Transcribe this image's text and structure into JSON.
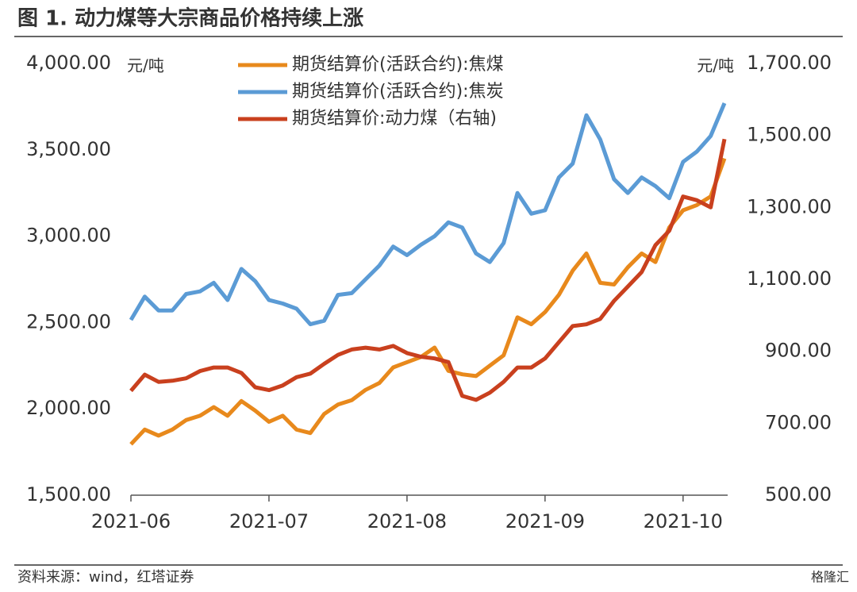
{
  "chart_data": {
    "type": "line",
    "title": "图 1. 动力煤等大宗商品价格持续上涨",
    "source": "资料来源：wind，红塔证券",
    "watermark": "格隆汇",
    "y_label": "元/吨",
    "y2_label": "元/吨",
    "categories": [
      "2021-06",
      null,
      null,
      null,
      null,
      null,
      null,
      null,
      null,
      null,
      "2021-07",
      null,
      null,
      null,
      null,
      null,
      null,
      null,
      null,
      null,
      "2021-08",
      null,
      null,
      null,
      null,
      null,
      null,
      null,
      null,
      null,
      "2021-09",
      null,
      null,
      null,
      null,
      null,
      null,
      null,
      null,
      null,
      "2021-10",
      null,
      null,
      null
    ],
    "series": [
      {
        "name": "期货结算价(活跃合约):焦煤",
        "color": "#e8891c",
        "values": [
          1795,
          1880,
          1845,
          1880,
          1935,
          1960,
          2010,
          1960,
          2045,
          1990,
          1925,
          1960,
          1880,
          1860,
          1970,
          2025,
          2050,
          2110,
          2150,
          2240,
          2270,
          2300,
          2355,
          2220,
          2200,
          2190,
          2250,
          2310,
          2530,
          2490,
          2560,
          2660,
          2800,
          2900,
          2730,
          2720,
          2820,
          2900,
          2850,
          3050,
          3150,
          3180,
          3230,
          3450
        ]
      },
      {
        "name": "期货结算价(活跃合约):焦炭",
        "color": "#5b9bd5",
        "values": [
          2515,
          2650,
          2570,
          2570,
          2665,
          2680,
          2730,
          2630,
          2810,
          2740,
          2630,
          2610,
          2580,
          2490,
          2510,
          2660,
          2670,
          2750,
          2830,
          2940,
          2890,
          2950,
          3000,
          3080,
          3050,
          2900,
          2850,
          2960,
          3250,
          3130,
          3150,
          3340,
          3420,
          3700,
          3560,
          3330,
          3250,
          3340,
          3290,
          3220,
          3430,
          3490,
          3580,
          3770
        ]
      },
      {
        "name": "期货结算价:动力煤（右轴)",
        "color": "#c9401e",
        "axis": "y2",
        "values": [
          790,
          835,
          815,
          818,
          825,
          845,
          855,
          855,
          840,
          800,
          792,
          805,
          828,
          838,
          865,
          890,
          905,
          910,
          905,
          915,
          895,
          885,
          880,
          870,
          776,
          765,
          785,
          815,
          855,
          855,
          880,
          925,
          970,
          975,
          990,
          1040,
          1080,
          1120,
          1195,
          1235,
          1330,
          1320,
          1300,
          1490
        ]
      }
    ],
    "ylim": [
      1500,
      4000
    ],
    "yticks": [
      {
        "value": 1500,
        "label": "1,500.00"
      },
      {
        "value": 2000,
        "label": "2,000.00"
      },
      {
        "value": 2500,
        "label": "2,500.00"
      },
      {
        "value": 3000,
        "label": "3,000.00"
      },
      {
        "value": 3500,
        "label": "3,500.00"
      },
      {
        "value": 4000,
        "label": "4,000.00"
      }
    ],
    "y2lim": [
      500,
      1700
    ],
    "y2ticks": [
      {
        "value": 500,
        "label": "500.00"
      },
      {
        "value": 700,
        "label": "700.00"
      },
      {
        "value": 900,
        "label": "900.00"
      },
      {
        "value": 1100,
        "label": "1,100.00"
      },
      {
        "value": 1300,
        "label": "1,300.00"
      },
      {
        "value": 1500,
        "label": "1,500.00"
      },
      {
        "value": 1700,
        "label": "1,700.00"
      }
    ],
    "grid": false,
    "legend": "top"
  }
}
